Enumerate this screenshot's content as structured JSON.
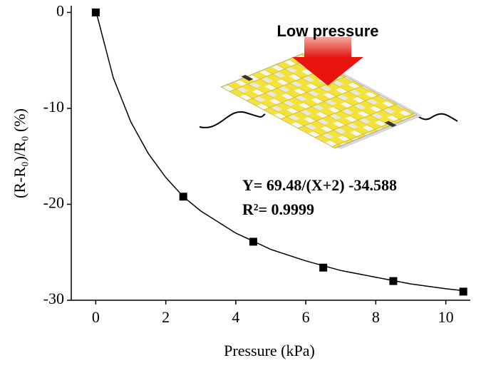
{
  "chart_data": {
    "type": "scatter",
    "xlabel": "Pressure (kPa)",
    "ylabel": "(R-R₀)/R₀ (%)",
    "annotations": [
      "Low pressure",
      "Y= 69.48/(X+2) -34.588",
      "R²= 0.9999"
    ],
    "xlim": [
      -0.7,
      10.7
    ],
    "xticks": [
      0,
      2,
      4,
      6,
      8,
      10
    ],
    "ylim": [
      -30,
      0.7
    ],
    "yticks": [
      0,
      -10,
      -20,
      -30
    ],
    "series": [
      {
        "x": [
          0,
          2.5,
          4.5,
          6.5,
          8.5,
          10.5
        ],
        "values": [
          0,
          -19.2,
          -23.9,
          -26.6,
          -28.0,
          -29.1
        ],
        "color": "#000000",
        "marker": "square"
      },
      {
        "x": [
          0,
          0.5,
          1,
          1.5,
          2,
          2.5,
          3,
          4,
          5,
          6,
          7,
          8,
          9,
          10,
          10.5
        ],
        "values": [
          0.2,
          -6.8,
          -11.4,
          -14.7,
          -17.2,
          -19.2,
          -20.7,
          -23.0,
          -24.7,
          -25.9,
          -26.9,
          -27.6,
          -28.3,
          -28.8,
          -29.0
        ],
        "color": "#000000",
        "marker": "none"
      }
    ]
  }
}
